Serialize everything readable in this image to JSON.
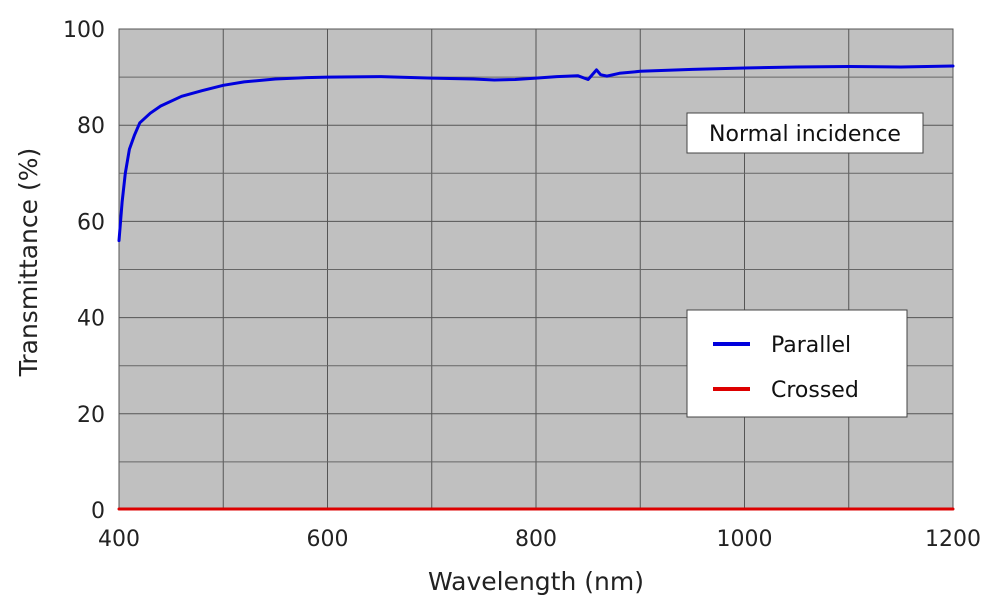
{
  "chart_data": {
    "type": "line",
    "title": "",
    "xlabel": "Wavelength (nm)",
    "ylabel": "Transmittance (%)",
    "xlim": [
      400,
      1200
    ],
    "ylim": [
      0,
      100
    ],
    "xticks": [
      400,
      600,
      800,
      1000,
      1200
    ],
    "yticks": [
      0,
      20,
      40,
      60,
      80,
      100
    ],
    "grid": true,
    "background": "#c0c0c0",
    "annotation": "Normal incidence",
    "legend_position": "bottom-right",
    "series": [
      {
        "name": "Parallel",
        "color": "#0000dd",
        "x": [
          400,
          403,
          406,
          410,
          415,
          420,
          430,
          440,
          460,
          480,
          500,
          520,
          550,
          580,
          600,
          650,
          700,
          740,
          760,
          780,
          800,
          820,
          840,
          850,
          858,
          862,
          868,
          880,
          900,
          950,
          1000,
          1050,
          1100,
          1150,
          1200
        ],
        "y": [
          56,
          64,
          70,
          75,
          78,
          80.5,
          82.5,
          84,
          86,
          87.2,
          88.3,
          89,
          89.6,
          89.9,
          90,
          90.1,
          89.8,
          89.6,
          89.4,
          89.5,
          89.8,
          90.1,
          90.3,
          89.5,
          91.5,
          90.5,
          90.2,
          90.8,
          91.2,
          91.6,
          91.9,
          92.1,
          92.2,
          92.1,
          92.3
        ]
      },
      {
        "name": "Crossed",
        "color": "#dd0000",
        "x": [
          400,
          600,
          800,
          1000,
          1200
        ],
        "y": [
          0.2,
          0.2,
          0.2,
          0.2,
          0.2
        ]
      }
    ]
  }
}
